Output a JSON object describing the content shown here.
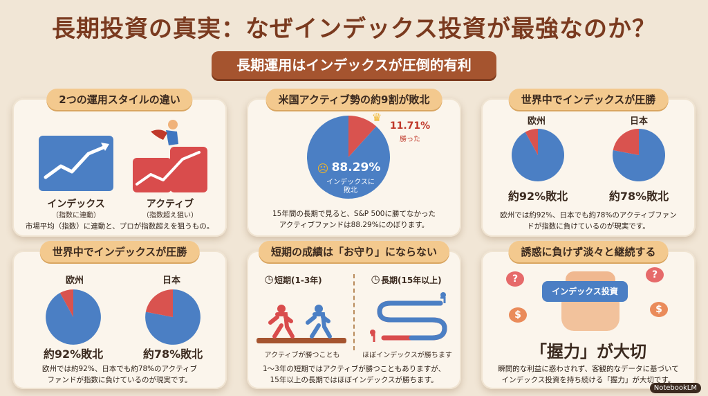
{
  "header": {
    "title": "長期投資の真実：なぜインデックス投資が最強なのか？",
    "subtitle": "長期運用はインデックスが圧倒的有利"
  },
  "panel1": {
    "title": "2つの運用スタイルの違い",
    "index_label": "インデックス",
    "index_sub": "（指数に連動）",
    "active_label": "アクティブ",
    "active_sub": "（指数超え狙い）",
    "caption": "市場平均（指数）に連動と、プロが指数超えを狙うもの。"
  },
  "panel2": {
    "title": "米国アクティブ勢の約9割が敗北",
    "win_pct": "11.71%",
    "win_label": "勝った",
    "lose_pct": "88.29%",
    "lose_label1": "インデックスに",
    "lose_label2": "敗北",
    "caption1": "15年間の長期で見ると、S&P 500に勝てなかった",
    "caption2": "アクティブファンドは88.29%にのぼります。"
  },
  "panel3": {
    "title": "世界中でインデックスが圧勝",
    "eu_label": "欧州",
    "jp_label": "日本",
    "eu_result": "約92%敗北",
    "jp_result": "約78%敗北",
    "caption1": "欧州では約92%、日本でも約78%のアクティブファン",
    "caption2": "ドが指数に負けているのが現実です。"
  },
  "panel4": {
    "title": "世界中でインデックスが圧勝",
    "eu_label": "欧州",
    "jp_label": "日本",
    "eu_result": "約92%敗北",
    "jp_result": "約78%敗北",
    "caption1": "欧州では約92%、日本でも約78%のアクティブ",
    "caption2": "ファンドが指数に負けているのが現実です。"
  },
  "panel5": {
    "title": "短期の成績は「お守り」にならない",
    "short_label": "短期(1-3年)",
    "long_label": "長期(15年以上)",
    "short_cap": "アクティブが勝つことも",
    "long_cap": "ほぼインデックスが勝ちます",
    "caption1": "1～3年の短期ではアクティブが勝つこともありますが、",
    "caption2": "15年以上の長期ではほぼインデックスが勝ちます。"
  },
  "panel6": {
    "title": "誘惑に負けず淡々と継続する",
    "sign": "インデックス投資",
    "headline": "「握力」が大切",
    "caption1": "瞬間的な利益に惑わされず、客観的なデータに基づいて",
    "caption2": "インデックス投資を持ち続ける「握力」が大切です。"
  },
  "footer": {
    "brand": "NotebookLM"
  },
  "chart_data": [
    {
      "type": "pie",
      "categories": [
        "勝った",
        "インデックスに敗北"
      ],
      "values": [
        11.71,
        88.29
      ]
    },
    {
      "type": "pie",
      "categories": [
        "欧州 敗北",
        "その他"
      ],
      "values": [
        92,
        8
      ]
    },
    {
      "type": "pie",
      "categories": [
        "日本 敗北",
        "その他"
      ],
      "values": [
        78,
        22
      ]
    }
  ],
  "colors": {
    "blue": "#4b7fc4",
    "red": "#d9534f",
    "accent": "#a5542f"
  }
}
